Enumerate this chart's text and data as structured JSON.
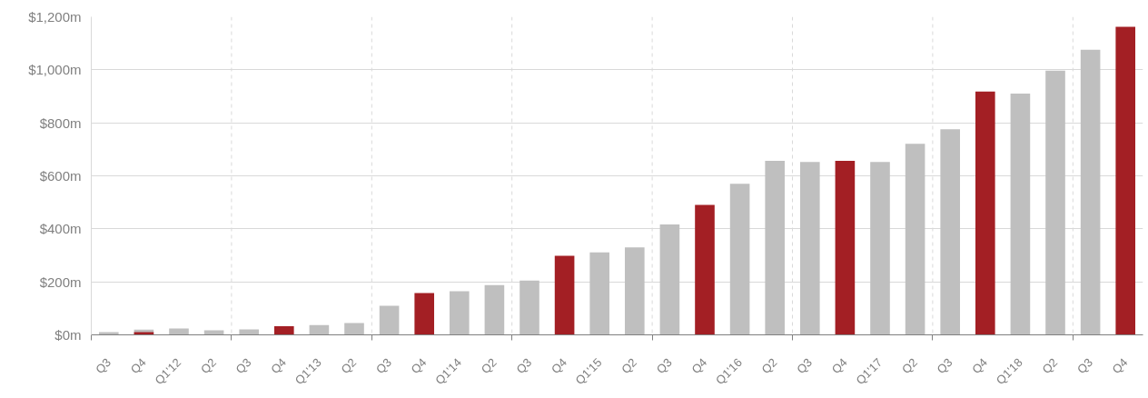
{
  "chart_data": {
    "type": "bar",
    "categories": [
      "Q3",
      "Q4",
      "Q1'12",
      "Q2",
      "Q3",
      "Q4",
      "Q1'13",
      "Q2",
      "Q3",
      "Q4",
      "Q1'14",
      "Q2",
      "Q3",
      "Q4",
      "Q1'15",
      "Q2",
      "Q3",
      "Q4",
      "Q1'16",
      "Q2",
      "Q3",
      "Q4",
      "Q1'17",
      "Q2",
      "Q3",
      "Q4",
      "Q1'18",
      "Q2",
      "Q3",
      "Q4"
    ],
    "series": [
      {
        "color": "#bfbfbf",
        "values": [
          10,
          20,
          24,
          17,
          21,
          null,
          37,
          45,
          110,
          null,
          165,
          188,
          205,
          null,
          311,
          330,
          417,
          null,
          570,
          657,
          652,
          null,
          652,
          721,
          776,
          null,
          910,
          997,
          1076,
          null
        ]
      },
      {
        "color": "#a31f24",
        "values": [
          null,
          10,
          null,
          null,
          null,
          33,
          null,
          null,
          null,
          158,
          null,
          null,
          null,
          298,
          null,
          null,
          null,
          490,
          null,
          null,
          null,
          657,
          null,
          null,
          null,
          918,
          null,
          null,
          null,
          1162
        ]
      }
    ],
    "ylim": [
      0,
      1200
    ],
    "yticks": [
      {
        "value": 0,
        "label": "$0m"
      },
      {
        "value": 200,
        "label": "$200m"
      },
      {
        "value": 400,
        "label": "$400m"
      },
      {
        "value": 600,
        "label": "$600m"
      },
      {
        "value": 800,
        "label": "$800m"
      },
      {
        "value": 1000,
        "label": "$1,000m"
      },
      {
        "value": 1200,
        "label": "$1,200m"
      }
    ],
    "grid": true
  }
}
